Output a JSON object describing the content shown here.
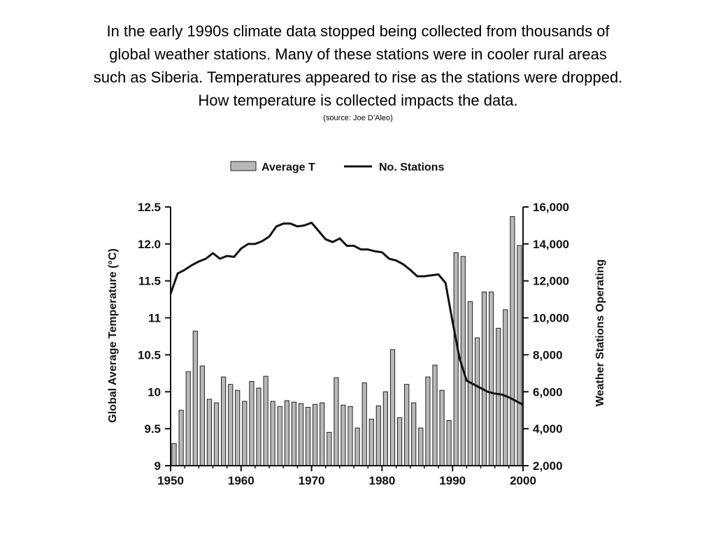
{
  "caption": {
    "lines": [
      "In the early 1990s climate data stopped being collected from thousands of",
      "global weather stations. Many of these stations were in cooler rural areas",
      "such as Siberia. Temperatures appeared to rise as the stations were dropped.",
      "How temperature is collected impacts the data."
    ],
    "source": "(source: Joe D’Aleo)"
  },
  "colors": {
    "bar_fill": "#b8b8b8",
    "bar_stroke": "#222222",
    "line": "#111111",
    "axis": "#111111"
  },
  "chart_data": {
    "type": "bar",
    "legend": {
      "position": "top",
      "entries": [
        "Average T",
        "No. Stations"
      ]
    },
    "xlim": [
      1950,
      2000
    ],
    "x_ticks": [
      "1950",
      "1960",
      "1970",
      "1980",
      "1990",
      "2000"
    ],
    "y_left": {
      "label": "Global Average Temperature (°C)",
      "lim": [
        9,
        12.5
      ],
      "ticks": [
        "9",
        "9.5",
        "10",
        "10.5",
        "11",
        "11.5",
        "12.0",
        "12.5"
      ]
    },
    "y_right": {
      "label": "Weather Stations Operating",
      "lim": [
        2000,
        16000
      ],
      "ticks": [
        "2,000",
        "4,000",
        "6,000",
        "8,000",
        "10,000",
        "12,000",
        "14,000",
        "16,000"
      ]
    },
    "series": [
      {
        "name": "Average T",
        "type": "bar",
        "axis": "left",
        "x": [
          1950,
          1951,
          1952,
          1953,
          1954,
          1955,
          1956,
          1957,
          1958,
          1959,
          1960,
          1961,
          1962,
          1963,
          1964,
          1965,
          1966,
          1967,
          1968,
          1969,
          1970,
          1971,
          1972,
          1973,
          1974,
          1975,
          1976,
          1977,
          1978,
          1979,
          1980,
          1981,
          1982,
          1983,
          1984,
          1985,
          1986,
          1987,
          1988,
          1989,
          1990,
          1991,
          1992,
          1993,
          1994,
          1995,
          1996,
          1997,
          1998,
          1999
        ],
        "values": [
          9.3,
          9.75,
          10.27,
          10.82,
          10.35,
          9.9,
          9.85,
          10.2,
          10.1,
          10.02,
          9.87,
          10.14,
          10.05,
          10.21,
          9.87,
          9.8,
          9.88,
          9.86,
          9.84,
          9.79,
          9.83,
          9.85,
          9.45,
          10.19,
          9.82,
          9.8,
          9.51,
          10.12,
          9.63,
          9.81,
          10.0,
          10.57,
          9.65,
          10.1,
          9.85,
          9.51,
          10.2,
          10.36,
          10.02,
          9.61,
          11.88,
          11.83,
          11.22,
          10.73,
          11.35,
          11.35,
          10.86,
          11.11,
          12.37,
          11.98
        ]
      },
      {
        "name": "No. Stations",
        "type": "line",
        "axis": "right",
        "x": [
          1950,
          1951,
          1952,
          1953,
          1954,
          1955,
          1956,
          1957,
          1958,
          1959,
          1960,
          1961,
          1962,
          1963,
          1964,
          1965,
          1966,
          1967,
          1968,
          1969,
          1970,
          1971,
          1972,
          1973,
          1974,
          1975,
          1976,
          1977,
          1978,
          1979,
          1980,
          1981,
          1982,
          1983,
          1984,
          1985,
          1986,
          1987,
          1988,
          1989,
          1990,
          1991,
          1992,
          1993,
          1994,
          1995,
          1996,
          1997,
          1998,
          1999,
          2000
        ],
        "values": [
          11300,
          12400,
          12600,
          12850,
          13050,
          13200,
          13500,
          13200,
          13350,
          13300,
          13750,
          14000,
          14000,
          14150,
          14400,
          14950,
          15100,
          15100,
          14950,
          15000,
          15150,
          14700,
          14250,
          14100,
          14300,
          13900,
          13900,
          13700,
          13700,
          13600,
          13550,
          13200,
          13100,
          12900,
          12600,
          12250,
          12250,
          12300,
          12350,
          11900,
          9800,
          7800,
          6600,
          6400,
          6200,
          6000,
          5900,
          5850,
          5700,
          5500,
          5300
        ]
      }
    ]
  }
}
